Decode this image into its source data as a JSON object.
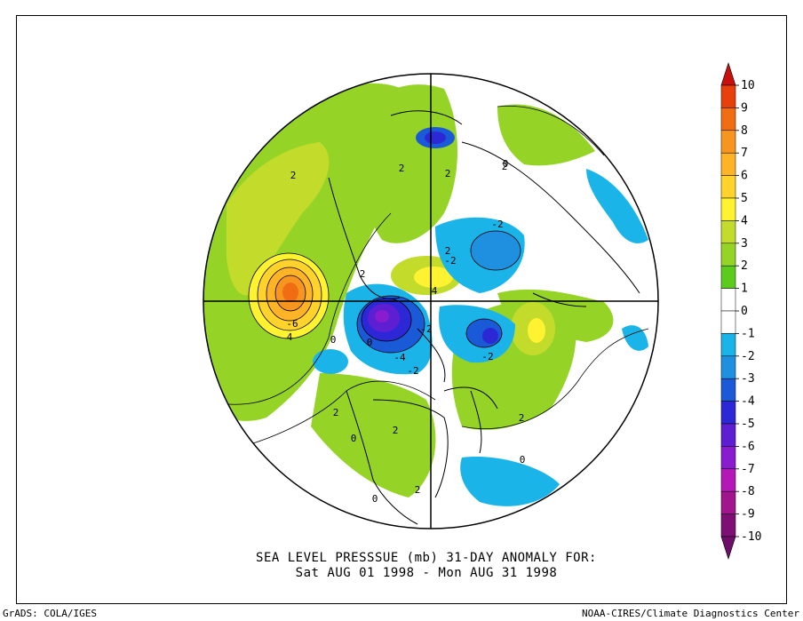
{
  "title": {
    "line1": "SEA LEVEL PRESSSUE (mb)   31-DAY ANOMALY FOR:",
    "line2": "Sat AUG 01 1998 - Mon AUG 31 1998"
  },
  "credits": {
    "left": "GrADS: COLA/IGES",
    "right": "NOAA-CIRES/Climate Diagnostics Center"
  },
  "colorbar": {
    "levels": [
      {
        "label": "10",
        "color": "#d7190f"
      },
      {
        "label": "9",
        "color": "#e8400d"
      },
      {
        "label": "8",
        "color": "#f06d14"
      },
      {
        "label": "7",
        "color": "#f7961e"
      },
      {
        "label": "6",
        "color": "#ffb427"
      },
      {
        "label": "5",
        "color": "#ffd22c"
      },
      {
        "label": "4",
        "color": "#fff230"
      },
      {
        "label": "3",
        "color": "#c3db2a"
      },
      {
        "label": "2",
        "color": "#95d426"
      },
      {
        "label": "1",
        "color": "#5bcc1e"
      },
      {
        "label": "0",
        "color": "#ffffff"
      },
      {
        "label": "-1",
        "color": "#ffffff"
      },
      {
        "label": "-2",
        "color": "#1bb4e9"
      },
      {
        "label": "-3",
        "color": "#1f8fe0"
      },
      {
        "label": "-4",
        "color": "#1a5ad6"
      },
      {
        "label": "-5",
        "color": "#2d28d6"
      },
      {
        "label": "-6",
        "color": "#5e1ed2"
      },
      {
        "label": "-7",
        "color": "#8a1ccf"
      },
      {
        "label": "-8",
        "color": "#b419b7"
      },
      {
        "label": "-9",
        "color": "#a2168d"
      },
      {
        "label": "-10",
        "color": "#7e0f74"
      }
    ],
    "top_arrow_color": "#c8110e",
    "bottom_arrow_color": "#6e0d6a"
  },
  "map": {
    "projection": "north-polar-stereographic",
    "contour_labels": [
      "2",
      "2",
      "2",
      "2",
      "2",
      "-2",
      "2",
      "4",
      "-2",
      "-6",
      "4",
      "0",
      "0",
      "-2",
      "-4",
      "-2",
      "-2",
      "2",
      "2",
      "2",
      "0",
      "0",
      "0",
      "2",
      "0"
    ]
  }
}
